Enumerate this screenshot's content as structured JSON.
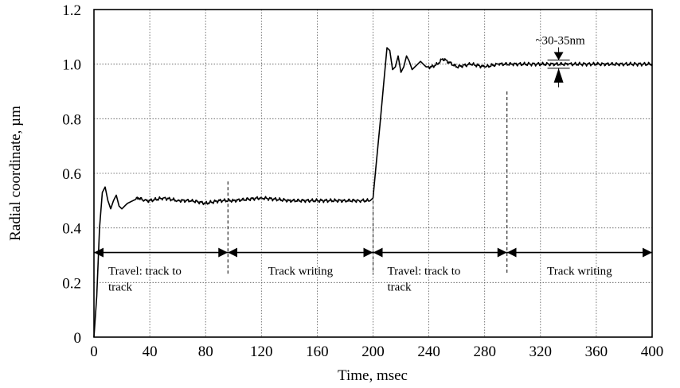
{
  "chart_data": {
    "type": "line",
    "xlabel": "Time, msec",
    "ylabel": "Radial coordinate, µm",
    "xlim": [
      0,
      400
    ],
    "ylim": [
      0,
      1.2
    ],
    "x_ticks": [
      "0",
      "40",
      "80",
      "120",
      "160",
      "200",
      "240",
      "280",
      "320",
      "360",
      "400"
    ],
    "y_ticks": [
      "0",
      "0.2",
      "0.4",
      "0.6",
      "0.8",
      "1.0",
      "1.2"
    ],
    "grid": true,
    "series": [
      {
        "x": [
          0,
          2,
          4,
          6,
          8,
          10,
          12,
          14,
          16,
          18,
          20,
          24,
          28,
          32,
          36,
          40,
          50,
          60,
          70,
          80,
          90,
          100,
          120,
          140,
          160,
          180,
          190,
          198,
          200,
          202,
          205,
          208,
          210,
          212,
          214,
          216,
          218,
          220,
          222,
          224,
          226,
          228,
          230,
          234,
          238,
          242,
          246,
          250,
          260,
          270,
          280,
          290,
          300,
          320,
          340,
          360,
          380,
          400
        ],
        "y": [
          0,
          0.15,
          0.4,
          0.53,
          0.55,
          0.5,
          0.47,
          0.5,
          0.52,
          0.48,
          0.47,
          0.49,
          0.5,
          0.51,
          0.5,
          0.5,
          0.51,
          0.5,
          0.5,
          0.49,
          0.5,
          0.5,
          0.51,
          0.5,
          0.5,
          0.5,
          0.5,
          0.5,
          0.51,
          0.62,
          0.78,
          0.95,
          1.06,
          1.05,
          0.98,
          0.99,
          1.03,
          0.97,
          0.99,
          1.03,
          1.01,
          0.98,
          0.99,
          1.01,
          0.99,
          0.99,
          1.0,
          1.02,
          0.99,
          1.0,
          0.99,
          1.0,
          1.0,
          1.0,
          1.0,
          1.0,
          1.0,
          1.0
        ]
      }
    ],
    "annotations": [
      {
        "text": "Travel: track to track",
        "x_start": 0,
        "x_end": 96,
        "y": 0.31
      },
      {
        "text": "Track writing",
        "x_start": 96,
        "x_end": 200,
        "y": 0.31
      },
      {
        "text": "Travel: track to track",
        "x_start": 200,
        "x_end": 296,
        "y": 0.31
      },
      {
        "text": "Track writing",
        "x_start": 296,
        "x_end": 400,
        "y": 0.31
      },
      {
        "text": "~30-35nm",
        "x": 333,
        "y_low": 0.985,
        "y_high": 1.015
      }
    ],
    "phase_dividers": [
      96,
      200,
      296
    ]
  }
}
